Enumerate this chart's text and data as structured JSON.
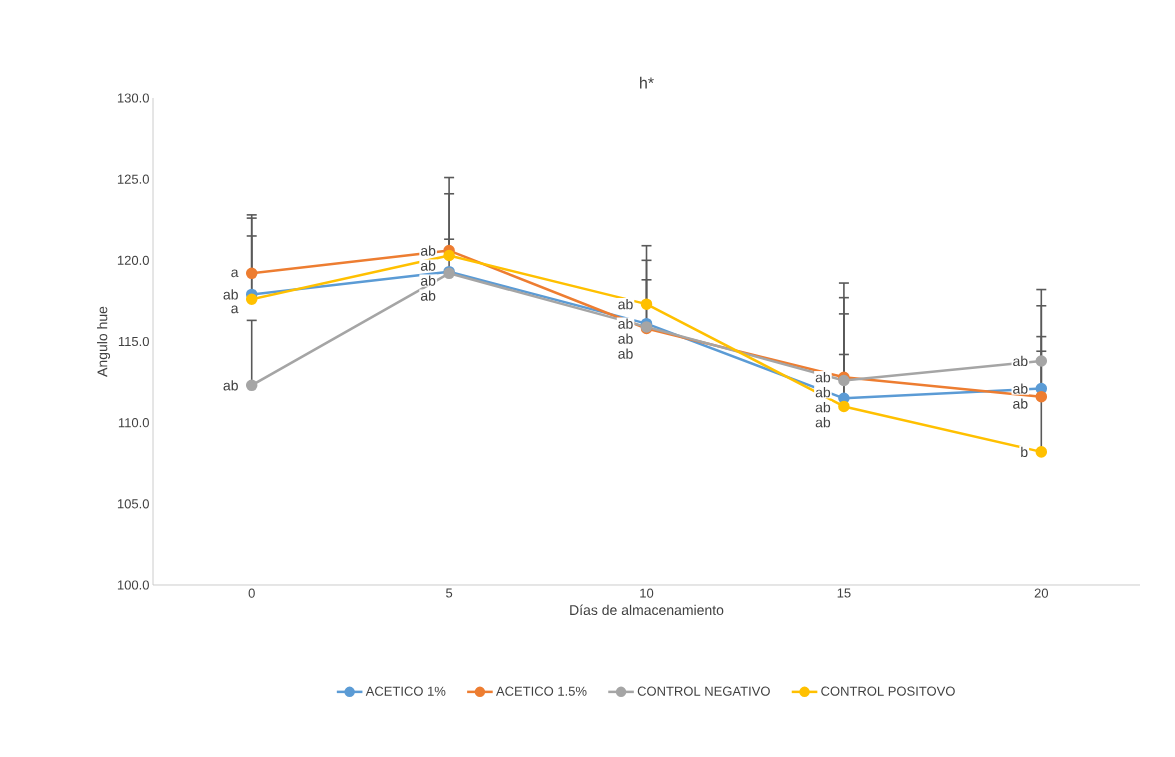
{
  "chart_data": {
    "type": "line",
    "title": "h*",
    "xlabel": "Días de almacenamiento",
    "ylabel": "Angulo hue",
    "categories": [
      "0",
      "5",
      "10",
      "15",
      "20"
    ],
    "ylim": [
      100,
      130
    ],
    "yticks": [
      {
        "value": 100,
        "label": "100.0"
      },
      {
        "value": 105,
        "label": "105.0"
      },
      {
        "value": 110,
        "label": "110.0"
      },
      {
        "value": 115,
        "label": "115.0"
      },
      {
        "value": 120,
        "label": "120.0"
      },
      {
        "value": 125,
        "label": "125.0"
      },
      {
        "value": 130,
        "label": "130.0"
      }
    ],
    "grid": false,
    "legend": "bottom",
    "marker": "circle",
    "line_style": "solid",
    "series": [
      {
        "name": "ACETICO 1%",
        "color": "#5b9bd5",
        "values": [
          117.9,
          119.3,
          116.1,
          111.5,
          112.1
        ],
        "errors": [
          [
            117.9,
            122.6
          ],
          [
            119.3,
            121.3
          ],
          [
            116.1,
            120.0
          ],
          [
            111.5,
            116.7
          ],
          [
            112.1,
            117.2
          ]
        ],
        "value_labels": [
          "ab",
          "ab",
          "ab",
          "ab",
          "ab"
        ]
      },
      {
        "name": "ACETICO 1.5%",
        "color": "#ed7d31",
        "values": [
          119.2,
          120.6,
          115.8,
          112.8,
          111.6
        ],
        "errors": [
          [
            119.2,
            122.8
          ],
          [
            120.6,
            125.1
          ],
          [
            115.8,
            118.8
          ],
          [
            112.8,
            118.6
          ],
          [
            111.6,
            115.3
          ]
        ],
        "value_labels": [
          "a",
          "ab",
          "ab",
          "ab",
          "ab"
        ]
      },
      {
        "name": "CONTROL NEGATIVO",
        "color": "#a5a5a5",
        "values": [
          112.3,
          119.2,
          115.9,
          112.6,
          113.8
        ],
        "errors": [
          [
            112.3,
            116.3
          ],
          null,
          null,
          [
            112.6,
            117.7
          ],
          [
            113.8,
            118.2
          ]
        ],
        "value_labels": [
          "ab",
          "ab",
          "ab",
          "ab",
          "ab"
        ]
      },
      {
        "name": "CONTROL POSITOVO",
        "color": "#ffc000",
        "values": [
          117.6,
          120.3,
          117.3,
          111.0,
          108.2
        ],
        "errors": [
          [
            117.6,
            121.5
          ],
          [
            120.3,
            124.1
          ],
          [
            117.3,
            120.9
          ],
          [
            111.0,
            114.2
          ],
          [
            108.2,
            114.4
          ]
        ],
        "value_labels": [
          "a",
          "ab",
          "ab",
          "ab",
          "b"
        ]
      }
    ]
  }
}
